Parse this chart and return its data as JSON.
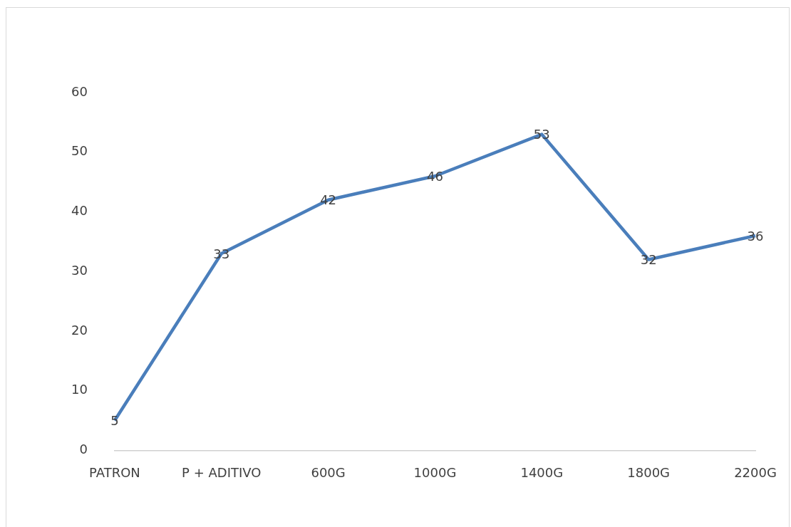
{
  "chart_data": {
    "type": "line",
    "categories": [
      "PATRON",
      "P + ADITIVO",
      "600G",
      "1000G",
      "1400G",
      "1800G",
      "2200G"
    ],
    "series": [
      {
        "color": "#4a7ebb",
        "values": [
          5,
          33,
          42,
          46,
          53,
          32,
          36
        ]
      }
    ],
    "ylim": [
      0,
      60
    ],
    "yticks": [
      0,
      10,
      20,
      30,
      40,
      50,
      60
    ],
    "data_labels": true,
    "marker": "none",
    "legend": false
  }
}
